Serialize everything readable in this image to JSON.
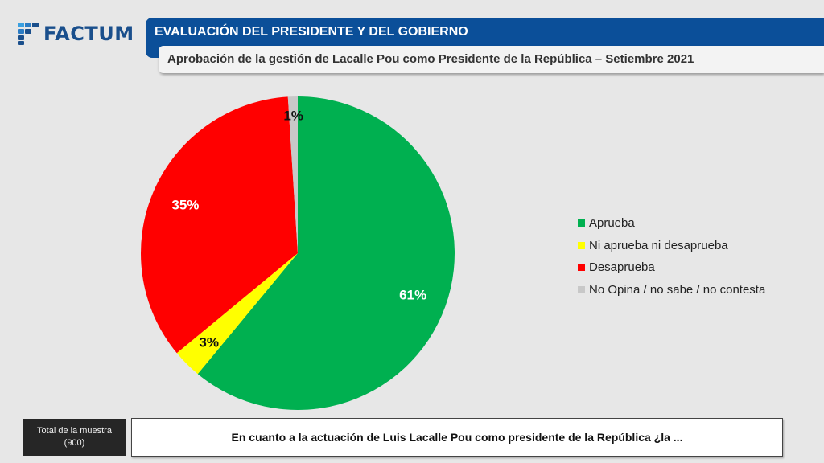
{
  "brand": {
    "logo_text": "FACTUM",
    "color": "#1a4f8c"
  },
  "header": {
    "title": "EVALUACIÓN DEL PRESIDENTE Y DEL GOBIERNO",
    "subtitle": "Aprobación de la gestión de Lacalle Pou como Presidente de la República – Setiembre 2021",
    "bar_color": "#0b4f99"
  },
  "footer": {
    "sample_label": "Total de la muestra",
    "sample_size": "(900)",
    "question": "En cuanto a la actuación de Luis Lacalle Pou como presidente de la República ¿la ..."
  },
  "chart_data": {
    "type": "pie",
    "title": "Aprobación de la gestión de Lacalle Pou como Presidente de la República – Setiembre 2021",
    "legend_position": "right",
    "start_angle": "12 o'clock, clockwise",
    "slices": [
      {
        "label": "Aprueba",
        "value": 61,
        "display": "61%",
        "color": "#00b050",
        "label_color": "#ffffff"
      },
      {
        "label": "Ni aprueba ni desaprueba",
        "value": 3,
        "display": "3%",
        "color": "#ffff00",
        "label_color": "#111111"
      },
      {
        "label": "Desaprueba",
        "value": 35,
        "display": "35%",
        "color": "#ff0000",
        "label_color": "#ffffff"
      },
      {
        "label": "No Opina / no sabe / no contesta",
        "value": 1,
        "display": "1%",
        "color": "#c8c8c8",
        "label_color": "#111111"
      }
    ]
  }
}
